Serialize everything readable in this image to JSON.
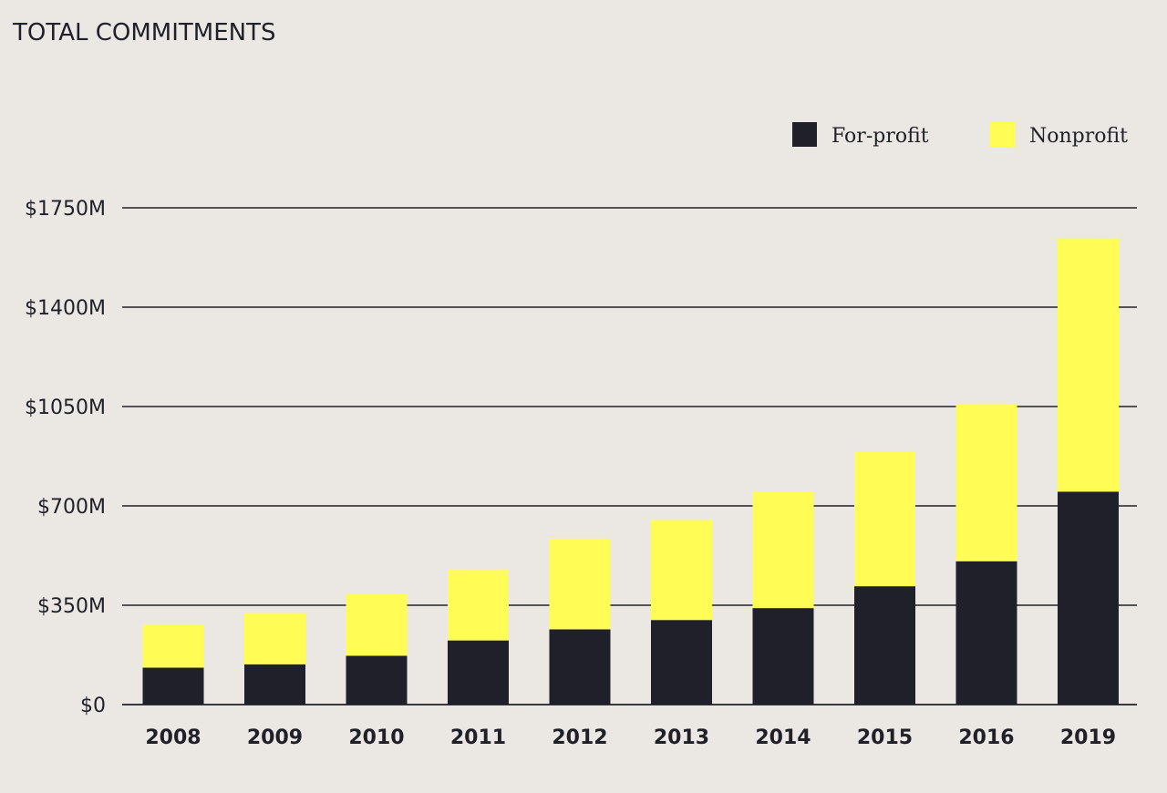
{
  "chart_data": {
    "type": "bar",
    "stacked": true,
    "title": "TOTAL COMMITMENTS",
    "xlabel": "",
    "ylabel": "",
    "categories": [
      "2008",
      "2009",
      "2010",
      "2011",
      "2012",
      "2013",
      "2014",
      "2015",
      "2016",
      "2019"
    ],
    "series": [
      {
        "name": "For-profit",
        "color": "#1F2029",
        "values": [
          130,
          142,
          172,
          226,
          265,
          298,
          340,
          417,
          505,
          750
        ]
      },
      {
        "name": "Nonprofit",
        "color": "#FFFC55",
        "values": [
          150,
          180,
          218,
          250,
          320,
          352,
          410,
          473,
          555,
          890
        ]
      }
    ],
    "ylim": [
      0,
      1750
    ],
    "yticks": [
      0,
      350,
      700,
      1050,
      1400,
      1750
    ],
    "ytick_labels": [
      "$0",
      "$350M",
      "$700M",
      "$1050M",
      "$1400M",
      "$1750M"
    ],
    "grid": true,
    "legend_position": "top-right"
  }
}
